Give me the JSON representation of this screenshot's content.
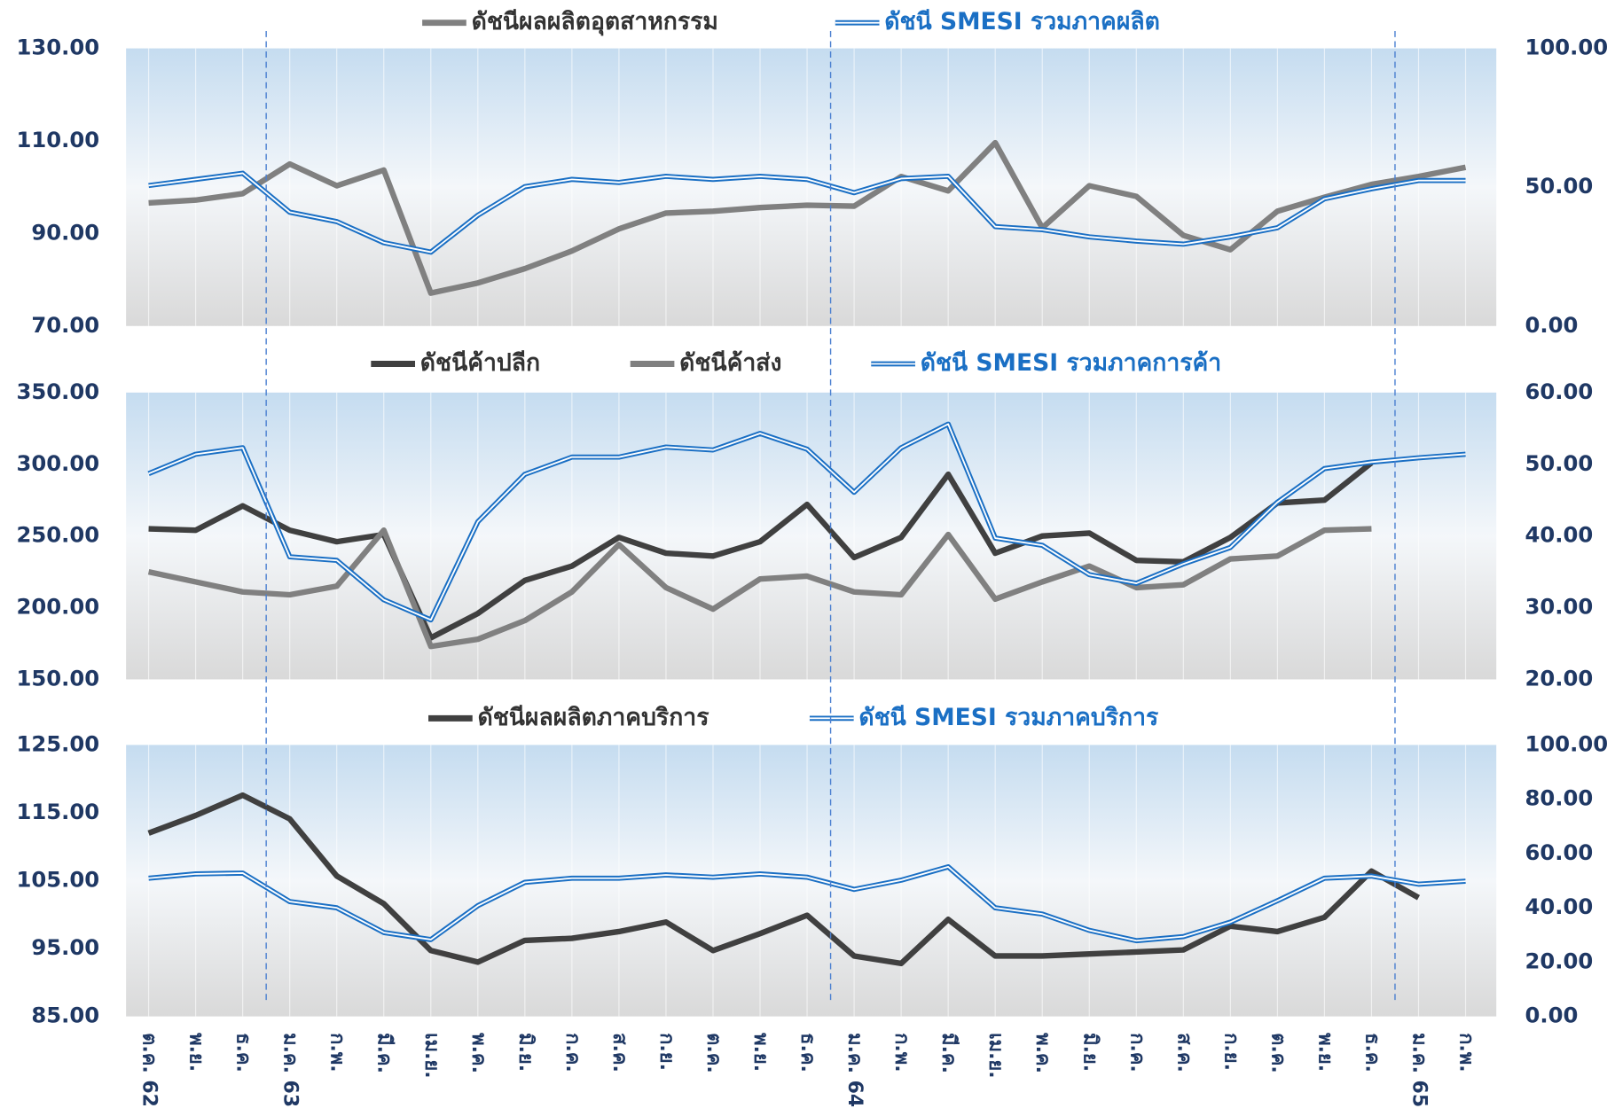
{
  "chart_data": [
    {
      "type": "line",
      "ylim": [
        70,
        130
      ],
      "yticks": [
        {
          "value": 70,
          "label": "70.00"
        },
        {
          "value": 90,
          "label": "90.00"
        },
        {
          "value": 110,
          "label": "110.00"
        },
        {
          "value": 130,
          "label": "130.00"
        }
      ],
      "y2lim": [
        0,
        100
      ],
      "y2ticks": [
        {
          "value": 0,
          "label": "0.00"
        },
        {
          "value": 50,
          "label": "50.00"
        },
        {
          "value": 100,
          "label": "100.00"
        }
      ],
      "series": [
        {
          "name": "ดัชนีผลผลิตอุตสาหกรรม",
          "color": "#808080",
          "axis": "y",
          "line_style": "solid",
          "values": [
            96.6,
            97.2,
            98.6,
            105,
            100.3,
            103.7,
            77.1,
            79.3,
            82.4,
            86.2,
            91,
            94.4,
            94.8,
            95.6,
            96.1,
            95.9,
            102.3,
            99.2,
            109.6,
            91.2,
            100.3,
            98,
            89.6,
            86.5,
            94.8,
            97.8,
            100.6,
            102.3,
            104.3
          ]
        },
        {
          "name": "ดัชนี SMESI รวมภาคผลิต",
          "color": "#1a6fc4",
          "axis": "y2",
          "line_style": "double",
          "values": [
            50.6,
            52.8,
            55,
            41,
            37.6,
            30,
            26.6,
            39.9,
            50.2,
            52.8,
            51.7,
            53.9,
            52.8,
            53.9,
            52.8,
            48,
            53.1,
            53.9,
            35.8,
            34.7,
            32.1,
            30.6,
            29.5,
            32.1,
            35.4,
            45.8,
            49.4,
            52.4,
            52.4
          ]
        }
      ]
    },
    {
      "type": "line",
      "ylim": [
        150,
        350
      ],
      "yticks": [
        {
          "value": 150,
          "label": "150.00"
        },
        {
          "value": 200,
          "label": "200.00"
        },
        {
          "value": 250,
          "label": "250.00"
        },
        {
          "value": 300,
          "label": "300.00"
        },
        {
          "value": 350,
          "label": "350.00"
        }
      ],
      "y2lim": [
        20,
        60
      ],
      "y2ticks": [
        {
          "value": 20,
          "label": "20.00"
        },
        {
          "value": 30,
          "label": "30.00"
        },
        {
          "value": 40,
          "label": "40.00"
        },
        {
          "value": 50,
          "label": "50.00"
        },
        {
          "value": 60,
          "label": "60.00"
        }
      ],
      "series": [
        {
          "name": "ดัชนีค้าปลีก",
          "color": "#404040",
          "axis": "y",
          "line_style": "solid",
          "values": [
            255,
            254,
            271,
            254,
            246,
            251,
            179,
            196,
            219,
            229,
            249,
            238,
            236,
            246,
            272,
            235,
            249,
            293,
            238,
            250,
            252,
            233,
            232,
            249,
            273,
            275,
            301,
            null,
            null
          ]
        },
        {
          "name": "ดัชนีค้าส่ง",
          "color": "#808080",
          "axis": "y",
          "line_style": "solid",
          "values": [
            225,
            218,
            211,
            209,
            215,
            254,
            173,
            178,
            191,
            211,
            244,
            214,
            199,
            220,
            222,
            211,
            209,
            251,
            206,
            218,
            229,
            214,
            216,
            234,
            236,
            254,
            255,
            null,
            null
          ]
        },
        {
          "name": "ดัชนี SMESI รวมภาคการค้า",
          "color": "#1a6fc4",
          "axis": "y2",
          "line_style": "double",
          "values": [
            48.7,
            51.4,
            52.3,
            37.1,
            36.6,
            31.1,
            28.3,
            42,
            48.6,
            51,
            51,
            52.4,
            52,
            54.3,
            52.1,
            46.1,
            52.3,
            55.6,
            39.7,
            38.7,
            34.6,
            33.4,
            36.1,
            38.4,
            44.7,
            49.4,
            50.3,
            50.9,
            51.4
          ]
        }
      ]
    },
    {
      "type": "line",
      "ylim": [
        85,
        125
      ],
      "yticks": [
        {
          "value": 85,
          "label": "85.00"
        },
        {
          "value": 95,
          "label": "95.00"
        },
        {
          "value": 105,
          "label": "105.00"
        },
        {
          "value": 115,
          "label": "115.00"
        },
        {
          "value": 125,
          "label": "125.00"
        }
      ],
      "y2lim": [
        0,
        100
      ],
      "y2ticks": [
        {
          "value": 0,
          "label": "0.00"
        },
        {
          "value": 20,
          "label": "20.00"
        },
        {
          "value": 40,
          "label": "40.00"
        },
        {
          "value": 60,
          "label": "60.00"
        },
        {
          "value": 80,
          "label": "80.00"
        },
        {
          "value": 100,
          "label": "100.00"
        }
      ],
      "categories": [
        "ต.ค. 62",
        "พ.ย.",
        "ธ.ค.",
        "ม.ค. 63",
        "ก.พ.",
        "มี.ค.",
        "เม.ย.",
        "พ.ค.",
        "มิ.ย.",
        "ก.ค.",
        "ส.ค.",
        "ก.ย.",
        "ต.ค.",
        "พ.ย.",
        "ธ.ค.",
        "ม.ค. 64",
        "ก.พ.",
        "มี.ค.",
        "เม.ย.",
        "พ.ค.",
        "มิ.ย.",
        "ก.ค.",
        "ส.ค.",
        "ก.ย.",
        "ต.ค.",
        "พ.ย.",
        "ธ.ค.",
        "ม.ค. 65",
        "ก.พ."
      ],
      "series": [
        {
          "name": "ดัชนีผลผลิตภาคบริการ",
          "color": "#404040",
          "axis": "y",
          "line_style": "solid",
          "values": [
            112,
            114.6,
            117.6,
            114.1,
            105.7,
            101.6,
            94.7,
            93,
            96.2,
            96.5,
            97.5,
            98.9,
            94.7,
            97.2,
            99.9,
            93.9,
            92.8,
            99.3,
            93.9,
            93.9,
            94.2,
            94.5,
            94.8,
            98.3,
            97.5,
            99.6,
            106.4,
            102.5,
            null
          ]
        },
        {
          "name": "ดัชนี SMESI รวมภาคบริการ",
          "color": "#1a6fc4",
          "axis": "y2",
          "line_style": "double",
          "values": [
            50.9,
            52.5,
            52.8,
            42.3,
            40,
            30.9,
            28.3,
            40.8,
            49.4,
            50.9,
            50.9,
            52.1,
            51.3,
            52.5,
            51.3,
            46.8,
            50.2,
            55.1,
            40,
            37.7,
            31.7,
            27.9,
            29.4,
            34.7,
            42.6,
            50.9,
            51.7,
            48.7,
            49.8
          ]
        }
      ]
    }
  ]
}
